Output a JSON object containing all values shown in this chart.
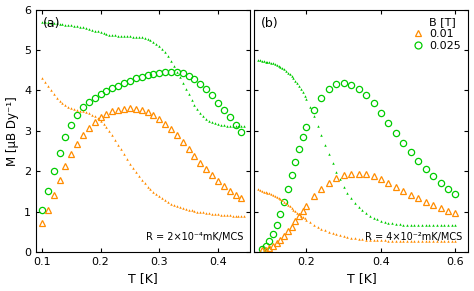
{
  "fig_width": 4.74,
  "fig_height": 2.91,
  "dpi": 100,
  "orange": "#FF8C00",
  "green": "#00CC00",
  "panel_a": {
    "label": "(a)",
    "xlabel": "T [K]",
    "ylabel": "M [μB Dy⁻¹]",
    "xlim": [
      0.09,
      0.455
    ],
    "ylim": [
      0,
      6
    ],
    "yticks": [
      0,
      1,
      2,
      3,
      4,
      5,
      6
    ],
    "xticks": [
      0.1,
      0.2,
      0.3,
      0.4
    ],
    "annotation": "R = 2×10⁻⁴mK/MCS",
    "green_solid": {
      "T": [
        0.1,
        0.105,
        0.11,
        0.115,
        0.12,
        0.125,
        0.13,
        0.135,
        0.14,
        0.145,
        0.15,
        0.155,
        0.16,
        0.165,
        0.17,
        0.175,
        0.18,
        0.185,
        0.19,
        0.195,
        0.2,
        0.205,
        0.21,
        0.215,
        0.22,
        0.225,
        0.23,
        0.235,
        0.24,
        0.245,
        0.25,
        0.255,
        0.26,
        0.265,
        0.27,
        0.275,
        0.28,
        0.285,
        0.29,
        0.295,
        0.3,
        0.305,
        0.31,
        0.315,
        0.32,
        0.325,
        0.33,
        0.335,
        0.34,
        0.345,
        0.35,
        0.355,
        0.36,
        0.365,
        0.37,
        0.375,
        0.38,
        0.385,
        0.39,
        0.395,
        0.4,
        0.405,
        0.41,
        0.415,
        0.42,
        0.425,
        0.43,
        0.435,
        0.44,
        0.445
      ],
      "M": [
        5.7,
        5.69,
        5.68,
        5.67,
        5.67,
        5.66,
        5.65,
        5.64,
        5.63,
        5.62,
        5.61,
        5.6,
        5.59,
        5.58,
        5.56,
        5.54,
        5.52,
        5.5,
        5.48,
        5.46,
        5.44,
        5.42,
        5.4,
        5.38,
        5.37,
        5.36,
        5.35,
        5.35,
        5.34,
        5.34,
        5.34,
        5.33,
        5.33,
        5.32,
        5.31,
        5.29,
        5.27,
        5.24,
        5.2,
        5.15,
        5.1,
        5.03,
        4.95,
        4.85,
        4.73,
        4.6,
        4.46,
        4.32,
        4.18,
        4.04,
        3.9,
        3.76,
        3.64,
        3.53,
        3.43,
        3.36,
        3.3,
        3.25,
        3.22,
        3.19,
        3.17,
        3.15,
        3.14,
        3.13,
        3.13,
        3.13,
        3.13,
        3.13,
        3.13,
        3.13
      ]
    },
    "green_open": {
      "T": [
        0.1,
        0.11,
        0.12,
        0.13,
        0.14,
        0.15,
        0.16,
        0.17,
        0.18,
        0.19,
        0.2,
        0.21,
        0.22,
        0.23,
        0.24,
        0.25,
        0.26,
        0.27,
        0.28,
        0.29,
        0.3,
        0.31,
        0.32,
        0.33,
        0.34,
        0.35,
        0.36,
        0.37,
        0.38,
        0.39,
        0.4,
        0.41,
        0.42,
        0.43,
        0.44
      ],
      "M": [
        1.05,
        1.5,
        2.0,
        2.45,
        2.85,
        3.15,
        3.4,
        3.6,
        3.72,
        3.82,
        3.9,
        3.98,
        4.05,
        4.12,
        4.18,
        4.24,
        4.3,
        4.34,
        4.38,
        4.41,
        4.43,
        4.45,
        4.46,
        4.45,
        4.42,
        4.36,
        4.28,
        4.17,
        4.03,
        3.88,
        3.7,
        3.52,
        3.33,
        3.15,
        2.98
      ]
    },
    "orange_solid": {
      "T": [
        0.1,
        0.105,
        0.11,
        0.115,
        0.12,
        0.125,
        0.13,
        0.135,
        0.14,
        0.145,
        0.15,
        0.155,
        0.16,
        0.165,
        0.17,
        0.175,
        0.18,
        0.185,
        0.19,
        0.195,
        0.2,
        0.205,
        0.21,
        0.215,
        0.22,
        0.225,
        0.23,
        0.235,
        0.24,
        0.245,
        0.25,
        0.255,
        0.26,
        0.265,
        0.27,
        0.275,
        0.28,
        0.285,
        0.29,
        0.295,
        0.3,
        0.305,
        0.31,
        0.315,
        0.32,
        0.325,
        0.33,
        0.335,
        0.34,
        0.345,
        0.35,
        0.355,
        0.36,
        0.365,
        0.37,
        0.375,
        0.38,
        0.385,
        0.39,
        0.395,
        0.4,
        0.405,
        0.41,
        0.415,
        0.42,
        0.425,
        0.43,
        0.435,
        0.44,
        0.445
      ],
      "M": [
        4.3,
        4.2,
        4.1,
        4.0,
        3.9,
        3.82,
        3.74,
        3.68,
        3.63,
        3.59,
        3.56,
        3.54,
        3.52,
        3.5,
        3.48,
        3.46,
        3.43,
        3.4,
        3.36,
        3.31,
        3.25,
        3.18,
        3.1,
        3.0,
        2.89,
        2.78,
        2.66,
        2.54,
        2.42,
        2.3,
        2.19,
        2.08,
        1.98,
        1.88,
        1.79,
        1.7,
        1.62,
        1.55,
        1.49,
        1.43,
        1.38,
        1.33,
        1.28,
        1.24,
        1.2,
        1.17,
        1.14,
        1.11,
        1.09,
        1.07,
        1.05,
        1.03,
        1.02,
        1.0,
        0.99,
        0.98,
        0.97,
        0.96,
        0.95,
        0.94,
        0.93,
        0.92,
        0.92,
        0.91,
        0.91,
        0.9,
        0.9,
        0.89,
        0.89,
        0.88
      ]
    },
    "orange_open": {
      "T": [
        0.1,
        0.11,
        0.12,
        0.13,
        0.14,
        0.15,
        0.16,
        0.17,
        0.18,
        0.19,
        0.2,
        0.21,
        0.22,
        0.23,
        0.24,
        0.25,
        0.26,
        0.27,
        0.28,
        0.29,
        0.3,
        0.31,
        0.32,
        0.33,
        0.34,
        0.35,
        0.36,
        0.37,
        0.38,
        0.39,
        0.4,
        0.41,
        0.42,
        0.43,
        0.44
      ],
      "M": [
        0.72,
        1.05,
        1.42,
        1.78,
        2.12,
        2.42,
        2.68,
        2.9,
        3.08,
        3.22,
        3.33,
        3.42,
        3.48,
        3.52,
        3.55,
        3.56,
        3.55,
        3.52,
        3.47,
        3.4,
        3.3,
        3.18,
        3.04,
        2.89,
        2.72,
        2.55,
        2.38,
        2.21,
        2.05,
        1.9,
        1.76,
        1.63,
        1.52,
        1.42,
        1.33
      ]
    }
  },
  "panel_b": {
    "label": "(b)",
    "xlabel": "T [K]",
    "xlim": [
      0.06,
      0.635
    ],
    "ylim": [
      0,
      6
    ],
    "yticks": [
      0,
      1,
      2,
      3,
      4,
      5,
      6
    ],
    "xticks": [
      0.2,
      0.4,
      0.6
    ],
    "annotation": "R = 4×10⁻²mK/MCS",
    "legend_title": "B [T]",
    "legend_entries": [
      "0.01",
      "0.025"
    ],
    "green_solid": {
      "T": [
        0.07,
        0.075,
        0.08,
        0.085,
        0.09,
        0.095,
        0.1,
        0.105,
        0.11,
        0.115,
        0.12,
        0.125,
        0.13,
        0.135,
        0.14,
        0.145,
        0.15,
        0.155,
        0.16,
        0.165,
        0.17,
        0.175,
        0.18,
        0.185,
        0.19,
        0.195,
        0.2,
        0.21,
        0.22,
        0.23,
        0.24,
        0.25,
        0.26,
        0.27,
        0.28,
        0.29,
        0.3,
        0.31,
        0.32,
        0.33,
        0.34,
        0.35,
        0.36,
        0.37,
        0.38,
        0.39,
        0.4,
        0.41,
        0.42,
        0.43,
        0.44,
        0.45,
        0.46,
        0.47,
        0.48,
        0.49,
        0.5,
        0.51,
        0.52,
        0.53,
        0.54,
        0.55,
        0.56,
        0.57,
        0.58,
        0.59,
        0.6
      ],
      "M": [
        4.75,
        4.74,
        4.73,
        4.72,
        4.71,
        4.7,
        4.69,
        4.68,
        4.67,
        4.65,
        4.63,
        4.61,
        4.58,
        4.55,
        4.52,
        4.48,
        4.44,
        4.4,
        4.35,
        4.3,
        4.24,
        4.18,
        4.11,
        4.04,
        3.96,
        3.87,
        3.78,
        3.58,
        3.36,
        3.13,
        2.89,
        2.65,
        2.42,
        2.2,
        1.99,
        1.8,
        1.62,
        1.47,
        1.33,
        1.21,
        1.11,
        1.03,
        0.96,
        0.9,
        0.85,
        0.81,
        0.78,
        0.75,
        0.73,
        0.71,
        0.7,
        0.69,
        0.68,
        0.67,
        0.67,
        0.67,
        0.67,
        0.66,
        0.66,
        0.66,
        0.66,
        0.66,
        0.66,
        0.66,
        0.66,
        0.66,
        0.66
      ]
    },
    "green_open": {
      "T": [
        0.08,
        0.09,
        0.1,
        0.11,
        0.12,
        0.13,
        0.14,
        0.15,
        0.16,
        0.17,
        0.18,
        0.19,
        0.2,
        0.22,
        0.24,
        0.26,
        0.28,
        0.3,
        0.32,
        0.34,
        0.36,
        0.38,
        0.4,
        0.42,
        0.44,
        0.46,
        0.48,
        0.5,
        0.52,
        0.54,
        0.56,
        0.58,
        0.6
      ],
      "M": [
        0.08,
        0.15,
        0.28,
        0.45,
        0.68,
        0.95,
        1.25,
        1.57,
        1.9,
        2.23,
        2.55,
        2.84,
        3.1,
        3.52,
        3.82,
        4.03,
        4.15,
        4.18,
        4.14,
        4.04,
        3.88,
        3.68,
        3.45,
        3.2,
        2.95,
        2.7,
        2.47,
        2.25,
        2.05,
        1.87,
        1.71,
        1.57,
        1.44
      ]
    },
    "orange_solid": {
      "T": [
        0.07,
        0.075,
        0.08,
        0.085,
        0.09,
        0.095,
        0.1,
        0.105,
        0.11,
        0.115,
        0.12,
        0.125,
        0.13,
        0.135,
        0.14,
        0.145,
        0.15,
        0.155,
        0.16,
        0.165,
        0.17,
        0.175,
        0.18,
        0.185,
        0.19,
        0.195,
        0.2,
        0.21,
        0.22,
        0.23,
        0.24,
        0.25,
        0.26,
        0.27,
        0.28,
        0.29,
        0.3,
        0.31,
        0.32,
        0.33,
        0.34,
        0.35,
        0.36,
        0.37,
        0.38,
        0.39,
        0.4,
        0.41,
        0.42,
        0.43,
        0.44,
        0.45,
        0.46,
        0.47,
        0.48,
        0.49,
        0.5,
        0.51,
        0.52,
        0.53,
        0.54,
        0.55,
        0.56,
        0.57,
        0.58,
        0.59,
        0.6
      ],
      "M": [
        1.55,
        1.53,
        1.51,
        1.49,
        1.48,
        1.46,
        1.45,
        1.43,
        1.41,
        1.39,
        1.37,
        1.34,
        1.31,
        1.28,
        1.24,
        1.21,
        1.17,
        1.13,
        1.09,
        1.05,
        1.01,
        0.97,
        0.93,
        0.9,
        0.86,
        0.83,
        0.8,
        0.74,
        0.68,
        0.63,
        0.58,
        0.54,
        0.5,
        0.47,
        0.44,
        0.41,
        0.39,
        0.37,
        0.35,
        0.34,
        0.33,
        0.32,
        0.31,
        0.3,
        0.3,
        0.29,
        0.29,
        0.29,
        0.28,
        0.28,
        0.28,
        0.28,
        0.28,
        0.27,
        0.27,
        0.27,
        0.27,
        0.27,
        0.27,
        0.27,
        0.27,
        0.27,
        0.27,
        0.27,
        0.27,
        0.27,
        0.27
      ]
    },
    "orange_open": {
      "T": [
        0.08,
        0.09,
        0.1,
        0.11,
        0.12,
        0.13,
        0.14,
        0.15,
        0.16,
        0.17,
        0.18,
        0.19,
        0.2,
        0.22,
        0.24,
        0.26,
        0.28,
        0.3,
        0.32,
        0.34,
        0.36,
        0.38,
        0.4,
        0.42,
        0.44,
        0.46,
        0.48,
        0.5,
        0.52,
        0.54,
        0.56,
        0.58,
        0.6
      ],
      "M": [
        0.04,
        0.06,
        0.1,
        0.15,
        0.22,
        0.3,
        0.4,
        0.51,
        0.63,
        0.76,
        0.89,
        1.02,
        1.15,
        1.38,
        1.57,
        1.72,
        1.83,
        1.9,
        1.94,
        1.94,
        1.92,
        1.87,
        1.8,
        1.72,
        1.62,
        1.52,
        1.42,
        1.33,
        1.24,
        1.16,
        1.09,
        1.02,
        0.96
      ]
    }
  }
}
